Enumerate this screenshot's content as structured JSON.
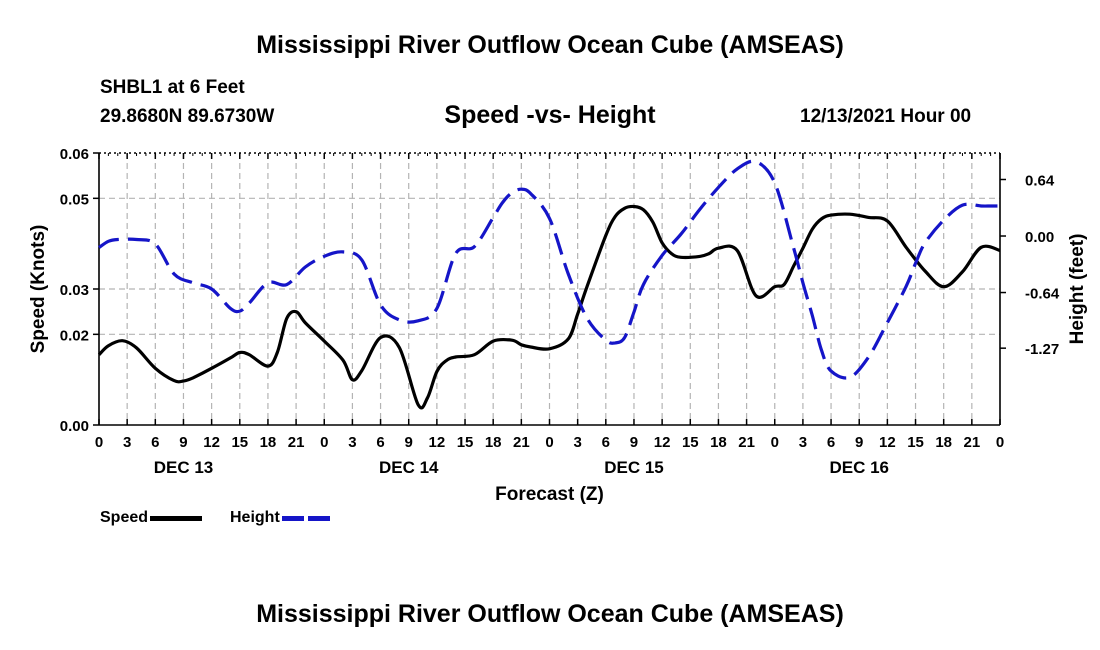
{
  "header": {
    "title": "Mississippi River Outflow Ocean Cube (AMSEAS)",
    "station": "SHBL1 at 6 Feet",
    "coordinates": "29.8680N  89.6730W",
    "subtitle": "Speed -vs- Height",
    "datestamp": "12/13/2021 Hour 00"
  },
  "footer": {
    "title": "Mississippi River Outflow Ocean Cube (AMSEAS)"
  },
  "legend": {
    "speed_label": "Speed",
    "height_label": "Height"
  },
  "colors": {
    "speed": "#000000",
    "height": "#1515c8",
    "grid": "#b4b4b4"
  },
  "chart_data": {
    "type": "line",
    "title": "Speed -vs- Height",
    "xlabel": "Forecast (Z)",
    "ylabel_left": "Speed (Knots)",
    "ylabel_right": "Height (feet)",
    "x_hours_range": [
      0,
      96
    ],
    "x_tick_labels": [
      "0",
      "3",
      "6",
      "9",
      "12",
      "15",
      "18",
      "21",
      "0",
      "3",
      "6",
      "9",
      "12",
      "15",
      "18",
      "21",
      "0",
      "3",
      "6",
      "9",
      "12",
      "15",
      "18",
      "21",
      "0",
      "3",
      "6",
      "9",
      "12",
      "15",
      "18",
      "21",
      "0"
    ],
    "day_labels": [
      {
        "hour": 9,
        "label": "DEC 13"
      },
      {
        "hour": 33,
        "label": "DEC 14"
      },
      {
        "hour": 57,
        "label": "DEC 15"
      },
      {
        "hour": 81,
        "label": "DEC 16"
      }
    ],
    "ylim_left": [
      0,
      0.06
    ],
    "yticks_left": [
      0.0,
      0.02,
      0.03,
      0.05,
      0.06
    ],
    "ytick_labels_left": [
      "0.00",
      "0.02",
      "0.03",
      "0.05",
      "0.06"
    ],
    "ylim_right": [
      -2.14,
      0.94
    ],
    "yticks_right": [
      0.64,
      0.0,
      -0.64,
      -1.27
    ],
    "ytick_labels_right": [
      "0.64",
      "0.00",
      "-0.64",
      "-1.27"
    ],
    "series": [
      {
        "name": "Speed",
        "axis": "left",
        "style": "solid",
        "x": [
          0,
          1,
          2.5,
          4,
          6,
          8,
          9,
          10,
          12,
          14,
          15,
          16,
          18,
          19,
          20,
          21,
          22,
          24,
          26,
          27,
          28,
          30,
          32,
          34,
          35,
          36,
          37,
          38,
          40,
          42,
          44,
          45,
          46,
          48,
          50,
          51,
          52,
          54,
          55,
          56,
          57,
          58,
          59,
          60,
          61,
          62,
          64,
          65,
          66,
          68,
          70,
          72,
          73,
          74,
          75,
          76,
          77,
          78,
          80,
          82,
          84,
          86,
          88,
          90,
          92,
          94,
          96
        ],
        "y": [
          0.0155,
          0.0175,
          0.0186,
          0.017,
          0.0125,
          0.0098,
          0.0097,
          0.0104,
          0.0125,
          0.0148,
          0.016,
          0.0155,
          0.013,
          0.016,
          0.0235,
          0.025,
          0.0225,
          0.0185,
          0.0143,
          0.01,
          0.012,
          0.0193,
          0.0171,
          0.0045,
          0.006,
          0.0118,
          0.0142,
          0.015,
          0.0155,
          0.0185,
          0.0187,
          0.0177,
          0.0172,
          0.0168,
          0.019,
          0.0245,
          0.0305,
          0.0418,
          0.046,
          0.0478,
          0.0482,
          0.0475,
          0.0448,
          0.0402,
          0.0378,
          0.037,
          0.0372,
          0.0378,
          0.039,
          0.0385,
          0.0285,
          0.0305,
          0.031,
          0.035,
          0.039,
          0.0432,
          0.0455,
          0.0463,
          0.0465,
          0.0458,
          0.045,
          0.0392,
          0.034,
          0.0305,
          0.0338,
          0.0392,
          0.0385
        ]
      },
      {
        "name": "Height",
        "axis": "right",
        "style": "dashed",
        "x": [
          0,
          1,
          2,
          4,
          6,
          8,
          10,
          12,
          14,
          15,
          16,
          18,
          20,
          22,
          24,
          26,
          28,
          30,
          32,
          34,
          36,
          38,
          40,
          42,
          43,
          44,
          45,
          46,
          48,
          50,
          52,
          54,
          55,
          56,
          57,
          58,
          60,
          62,
          64,
          66,
          68,
          70,
          72,
          74,
          75,
          76,
          77,
          78,
          80,
          82,
          84,
          86,
          87,
          88,
          90,
          92,
          94,
          95,
          96
        ],
        "y": [
          -0.13,
          -0.06,
          -0.04,
          -0.04,
          -0.09,
          -0.43,
          -0.53,
          -0.6,
          -0.82,
          -0.85,
          -0.76,
          -0.53,
          -0.55,
          -0.35,
          -0.23,
          -0.18,
          -0.27,
          -0.78,
          -0.95,
          -0.96,
          -0.82,
          -0.2,
          -0.12,
          0.21,
          0.38,
          0.49,
          0.53,
          0.48,
          0.2,
          -0.43,
          -0.93,
          -1.18,
          -1.21,
          -1.15,
          -0.86,
          -0.55,
          -0.22,
          0.02,
          0.3,
          0.55,
          0.76,
          0.84,
          0.6,
          -0.13,
          -0.53,
          -0.9,
          -1.3,
          -1.53,
          -1.6,
          -1.37,
          -0.98,
          -0.57,
          -0.31,
          -0.08,
          0.18,
          0.35,
          0.34,
          0.34,
          0.34
        ]
      }
    ]
  }
}
